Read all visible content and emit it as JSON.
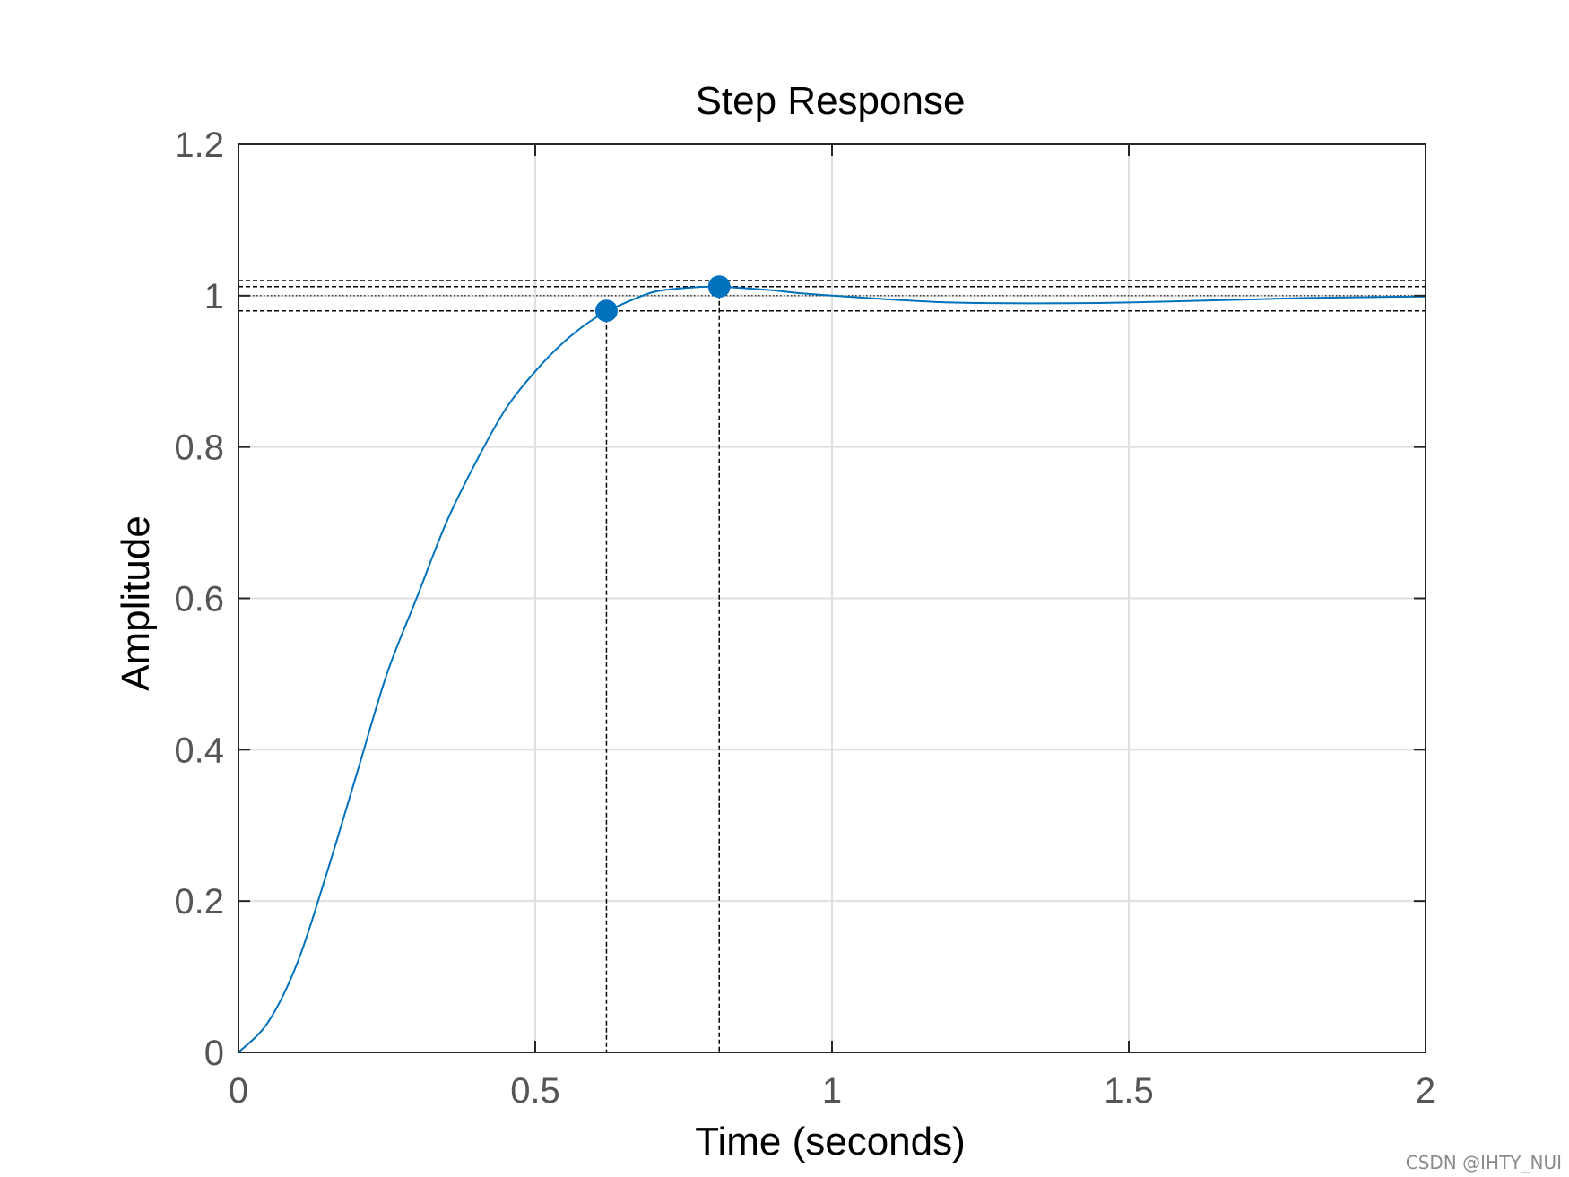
{
  "chart_data": {
    "type": "line",
    "title": "Step Response",
    "xlabel": "Time (seconds)",
    "ylabel": "Amplitude",
    "xlim": [
      0,
      2
    ],
    "ylim": [
      0,
      1.2
    ],
    "xticks": [
      0,
      0.5,
      1,
      1.5,
      2
    ],
    "xtick_labels": [
      "0",
      "0.5",
      "1",
      "1.5",
      "2"
    ],
    "yticks": [
      0,
      0.2,
      0.4,
      0.6,
      0.8,
      1,
      1.2
    ],
    "ytick_labels": [
      "0",
      "0.2",
      "0.4",
      "0.6",
      "0.8",
      "1",
      "1.2"
    ],
    "grid": true,
    "series": [
      {
        "color": "#0072BD",
        "x": [
          0,
          0.05,
          0.1,
          0.15,
          0.2,
          0.25,
          0.3,
          0.35,
          0.4,
          0.45,
          0.5,
          0.55,
          0.6,
          0.65,
          0.7,
          0.75,
          0.8,
          0.85,
          0.9,
          0.95,
          1.0,
          1.1,
          1.2,
          1.3,
          1.4,
          1.5,
          1.6,
          1.7,
          1.8,
          1.9,
          2.0
        ],
        "y": [
          0,
          0.04,
          0.12,
          0.24,
          0.37,
          0.5,
          0.6,
          0.7,
          0.78,
          0.85,
          0.9,
          0.94,
          0.97,
          0.99,
          1.005,
          1.01,
          1.012,
          1.01,
          1.007,
          1.003,
          1.0,
          0.995,
          0.991,
          0.99,
          0.99,
          0.991,
          0.993,
          0.995,
          0.997,
          0.998,
          0.999
        ]
      }
    ],
    "markers": [
      {
        "name": "settling-point",
        "x": 0.62,
        "y": 0.98,
        "color": "#0072BD"
      },
      {
        "name": "peak-point",
        "x": 0.81,
        "y": 1.012,
        "color": "#0072BD"
      }
    ],
    "reference_lines": {
      "horizontal_dashed": [
        1.02,
        1.012,
        0.98
      ],
      "horizontal_dotted": [
        1.0
      ],
      "vertical_dashed": [
        0.62,
        0.81
      ]
    }
  },
  "watermark": "CSDN @IHTY_NUI"
}
